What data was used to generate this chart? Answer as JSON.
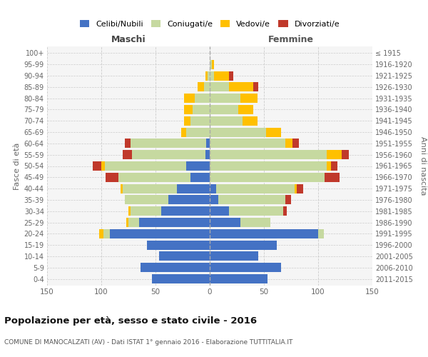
{
  "age_groups": [
    "0-4",
    "5-9",
    "10-14",
    "15-19",
    "20-24",
    "25-29",
    "30-34",
    "35-39",
    "40-44",
    "45-49",
    "50-54",
    "55-59",
    "60-64",
    "65-69",
    "70-74",
    "75-79",
    "80-84",
    "85-89",
    "90-94",
    "95-99",
    "100+"
  ],
  "birth_years": [
    "2011-2015",
    "2006-2010",
    "2001-2005",
    "1996-2000",
    "1991-1995",
    "1986-1990",
    "1981-1985",
    "1976-1980",
    "1971-1975",
    "1966-1970",
    "1961-1965",
    "1956-1960",
    "1951-1955",
    "1946-1950",
    "1941-1945",
    "1936-1940",
    "1931-1935",
    "1926-1930",
    "1921-1925",
    "1916-1920",
    "≤ 1915"
  ],
  "males_celibi": [
    53,
    64,
    47,
    58,
    92,
    65,
    45,
    38,
    30,
    18,
    22,
    4,
    3,
    0,
    0,
    0,
    0,
    0,
    0,
    0,
    0
  ],
  "males_coniugati": [
    0,
    0,
    0,
    0,
    6,
    10,
    28,
    40,
    50,
    66,
    75,
    68,
    70,
    22,
    18,
    16,
    14,
    5,
    2,
    0,
    0
  ],
  "males_vedovi": [
    0,
    0,
    0,
    0,
    4,
    2,
    2,
    0,
    2,
    0,
    3,
    0,
    0,
    4,
    6,
    8,
    10,
    6,
    2,
    0,
    0
  ],
  "males_divorziati": [
    0,
    0,
    0,
    0,
    0,
    0,
    0,
    0,
    0,
    12,
    8,
    8,
    5,
    0,
    0,
    0,
    0,
    0,
    0,
    0,
    0
  ],
  "females_nubili": [
    53,
    66,
    45,
    62,
    100,
    28,
    18,
    8,
    6,
    0,
    0,
    0,
    0,
    0,
    0,
    0,
    0,
    0,
    0,
    0,
    0
  ],
  "females_coniugate": [
    0,
    0,
    0,
    0,
    5,
    28,
    50,
    62,
    72,
    106,
    108,
    108,
    70,
    52,
    30,
    26,
    28,
    18,
    4,
    2,
    0
  ],
  "females_vedove": [
    0,
    0,
    0,
    0,
    0,
    0,
    0,
    0,
    2,
    0,
    4,
    14,
    6,
    14,
    14,
    14,
    16,
    22,
    14,
    2,
    0
  ],
  "females_divorziate": [
    0,
    0,
    0,
    0,
    0,
    0,
    3,
    5,
    6,
    14,
    6,
    6,
    6,
    0,
    0,
    0,
    0,
    5,
    4,
    0,
    0
  ],
  "color_celibi": "#4472c4",
  "color_coniugati": "#c6d9a0",
  "color_vedovi": "#ffc000",
  "color_divorziati": "#c0392b",
  "xlim": 150,
  "title": "Popolazione per età, sesso e stato civile - 2016",
  "subtitle": "COMUNE DI MANOCALZATI (AV) - Dati ISTAT 1° gennaio 2016 - Elaborazione TUTTITALIA.IT",
  "ylabel_left": "Fasce di età",
  "ylabel_right": "Anni di nascita",
  "xlabel_left": "Maschi",
  "xlabel_right": "Femmine",
  "bg_color": "#ffffff",
  "grid_color": "#cccccc"
}
